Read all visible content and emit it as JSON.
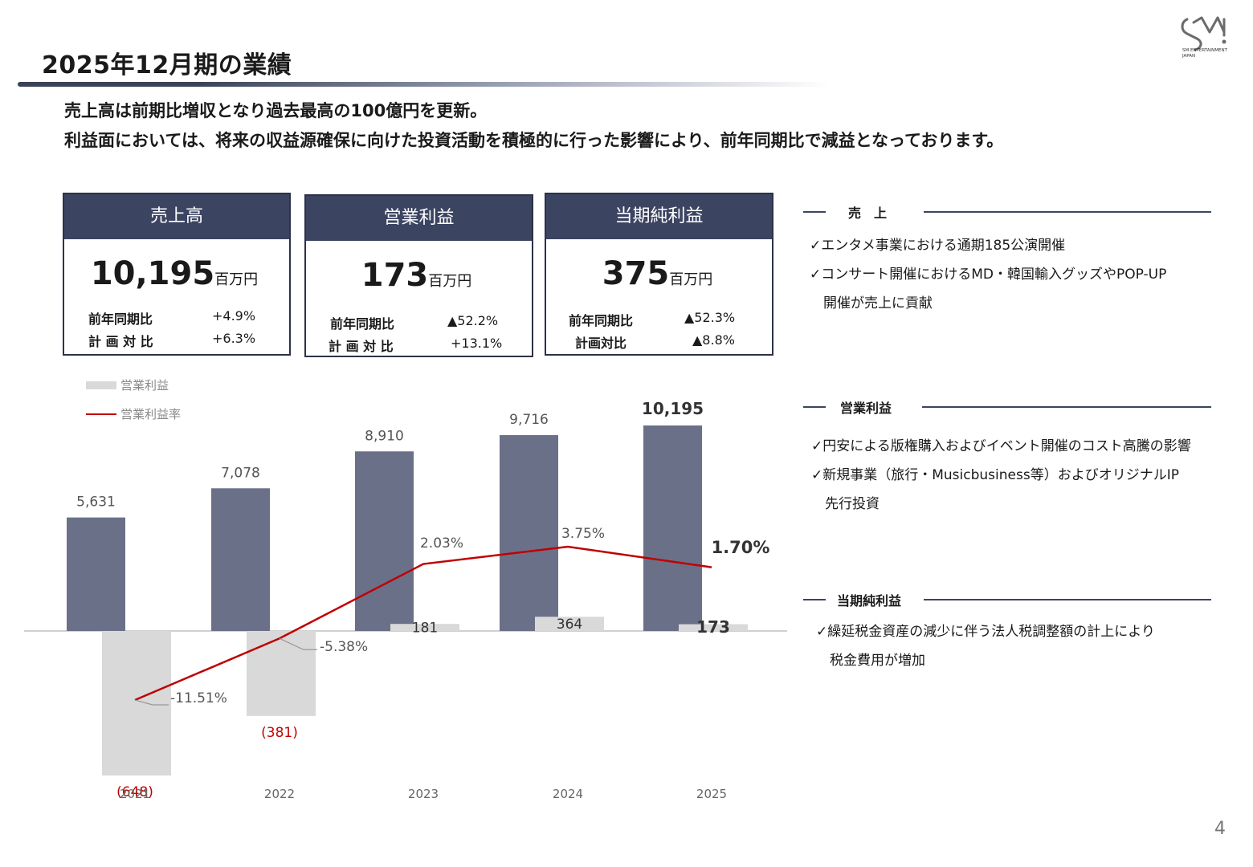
{
  "title": "2025年12月期の業績",
  "summary": {
    "line1": "売上高は前期比増収となり過去最高の100億円を更新。",
    "line2": "利益面においては、将来の収益源確保に向けた投資活動を積極的に行った影響により、前年同期比で減益となっております。"
  },
  "logo": {
    "text": "SM ENTERTAINMENT JAPAN",
    "icon": "sm-logo-icon"
  },
  "kpis": [
    {
      "header": "売上高",
      "value": "10,195",
      "unit": "百万円",
      "rows": [
        {
          "label": "前年同期比",
          "value": "+4.9%"
        },
        {
          "label": "計 画 対 比",
          "value": "+6.3%"
        }
      ]
    },
    {
      "header": "営業利益",
      "value": "173",
      "unit": "百万円",
      "rows": [
        {
          "label": "前年同期比",
          "value": "▲52.2%"
        },
        {
          "label": "計 画 対 比",
          "value": "+13.1%"
        }
      ]
    },
    {
      "header": "当期純利益",
      "value": "375",
      "unit": "百万円",
      "rows": [
        {
          "label": "前年同期比",
          "value": "▲52.3%"
        },
        {
          "label": "計画対比",
          "value": "▲8.8%"
        }
      ]
    }
  ],
  "sections": [
    {
      "heading": "売　上",
      "bullets": [
        "✓エンタメ事業における通期185公演開催",
        "✓コンサート開催におけるMD・韓国輸入グッズやPOP-UP",
        "　開催が売上に貢献"
      ]
    },
    {
      "heading": "営業利益",
      "bullets": [
        "✓円安による版権購入およびイベント開催のコスト高騰の影響",
        "✓新規事業（旅行・Musicbusiness等）およびオリジナルIP",
        "　先行投資"
      ]
    },
    {
      "heading": "当期純利益",
      "bullets": [
        "✓繰延税金資産の減少に伴う法人税調整額の計上により",
        "　税金費用が増加"
      ]
    }
  ],
  "page_number": "4",
  "colors": {
    "navy": "#3b4461",
    "bar_revenue": "#6b7089",
    "bar_op": "#d9d9d9",
    "line": "#c00000"
  },
  "chart_data": {
    "type": "bar",
    "categories": [
      "2021",
      "2022",
      "2023",
      "2024",
      "2025"
    ],
    "legend": [
      "営業利益",
      "営業利益率"
    ],
    "legend_position": "top-left",
    "series": [
      {
        "values": [
          5631,
          7078,
          8910,
          9716,
          10195
        ],
        "labels": [
          "5,631",
          "7,078",
          "8,910",
          "9,716",
          "10,195"
        ]
      },
      {
        "name": "営業利益",
        "values": [
          -648,
          -381,
          181,
          364,
          173
        ],
        "labels": [
          "(648)",
          "(381)",
          "181",
          "364",
          "173"
        ]
      },
      {
        "name": "営業利益率",
        "type": "line",
        "values": [
          -11.51,
          -5.38,
          2.03,
          3.75,
          1.7
        ],
        "labels": [
          "-11.51%",
          "-5.38%",
          "2.03%",
          "3.75%",
          "1.70%"
        ]
      }
    ],
    "grid": false
  }
}
